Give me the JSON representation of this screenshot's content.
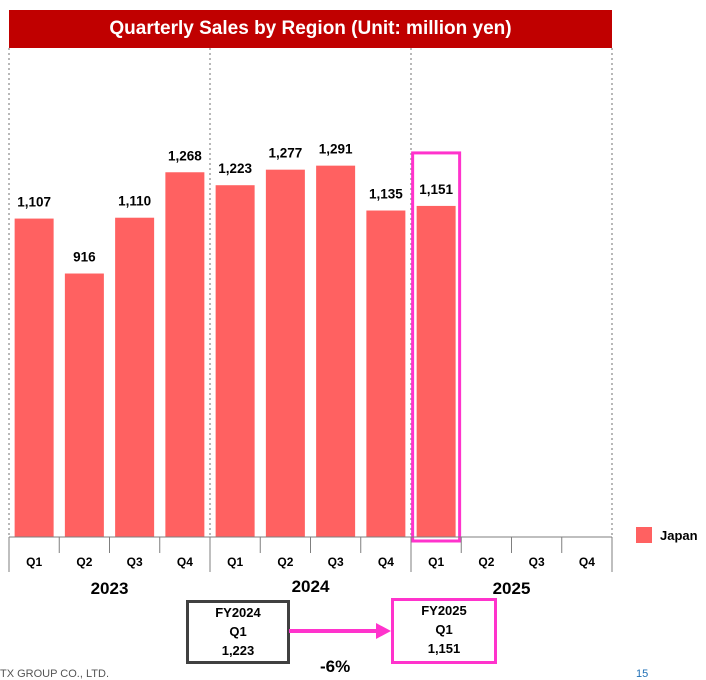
{
  "title": "Quarterly Sales by Region (Unit: million yen)",
  "chart_data": {
    "type": "bar",
    "title": "Quarterly Sales by Region (Unit: million yen)",
    "categories": [
      "Q1",
      "Q2",
      "Q3",
      "Q4",
      "Q1",
      "Q2",
      "Q3",
      "Q4",
      "Q1",
      "Q2",
      "Q3",
      "Q4"
    ],
    "groups": [
      "2023",
      "2024",
      "2025"
    ],
    "series": [
      {
        "name": "Japan",
        "color": "#ff6161",
        "values": [
          1107,
          916,
          1110,
          1268,
          1223,
          1277,
          1291,
          1135,
          1151,
          null,
          null,
          null
        ],
        "labels": [
          "1,107",
          "916",
          "1,110",
          "1,268",
          "1,223",
          "1,277",
          "1,291",
          "1,135",
          "1,151",
          "",
          "",
          ""
        ]
      }
    ],
    "highlight_index": 8,
    "highlight_color": "#ff33cc",
    "ylim": [
      0,
      1700
    ],
    "grid": false,
    "legend_position": "right"
  },
  "legend": {
    "label": "Japan"
  },
  "comparison": {
    "prev": {
      "line1": "FY2024",
      "line2": "Q1",
      "line3": "1,223"
    },
    "cur": {
      "line1": "FY2025",
      "line2": "Q1",
      "line3": "1,151"
    },
    "change": "-6%"
  },
  "footer": {
    "company": "TX GROUP CO., LTD.",
    "page": "15"
  }
}
